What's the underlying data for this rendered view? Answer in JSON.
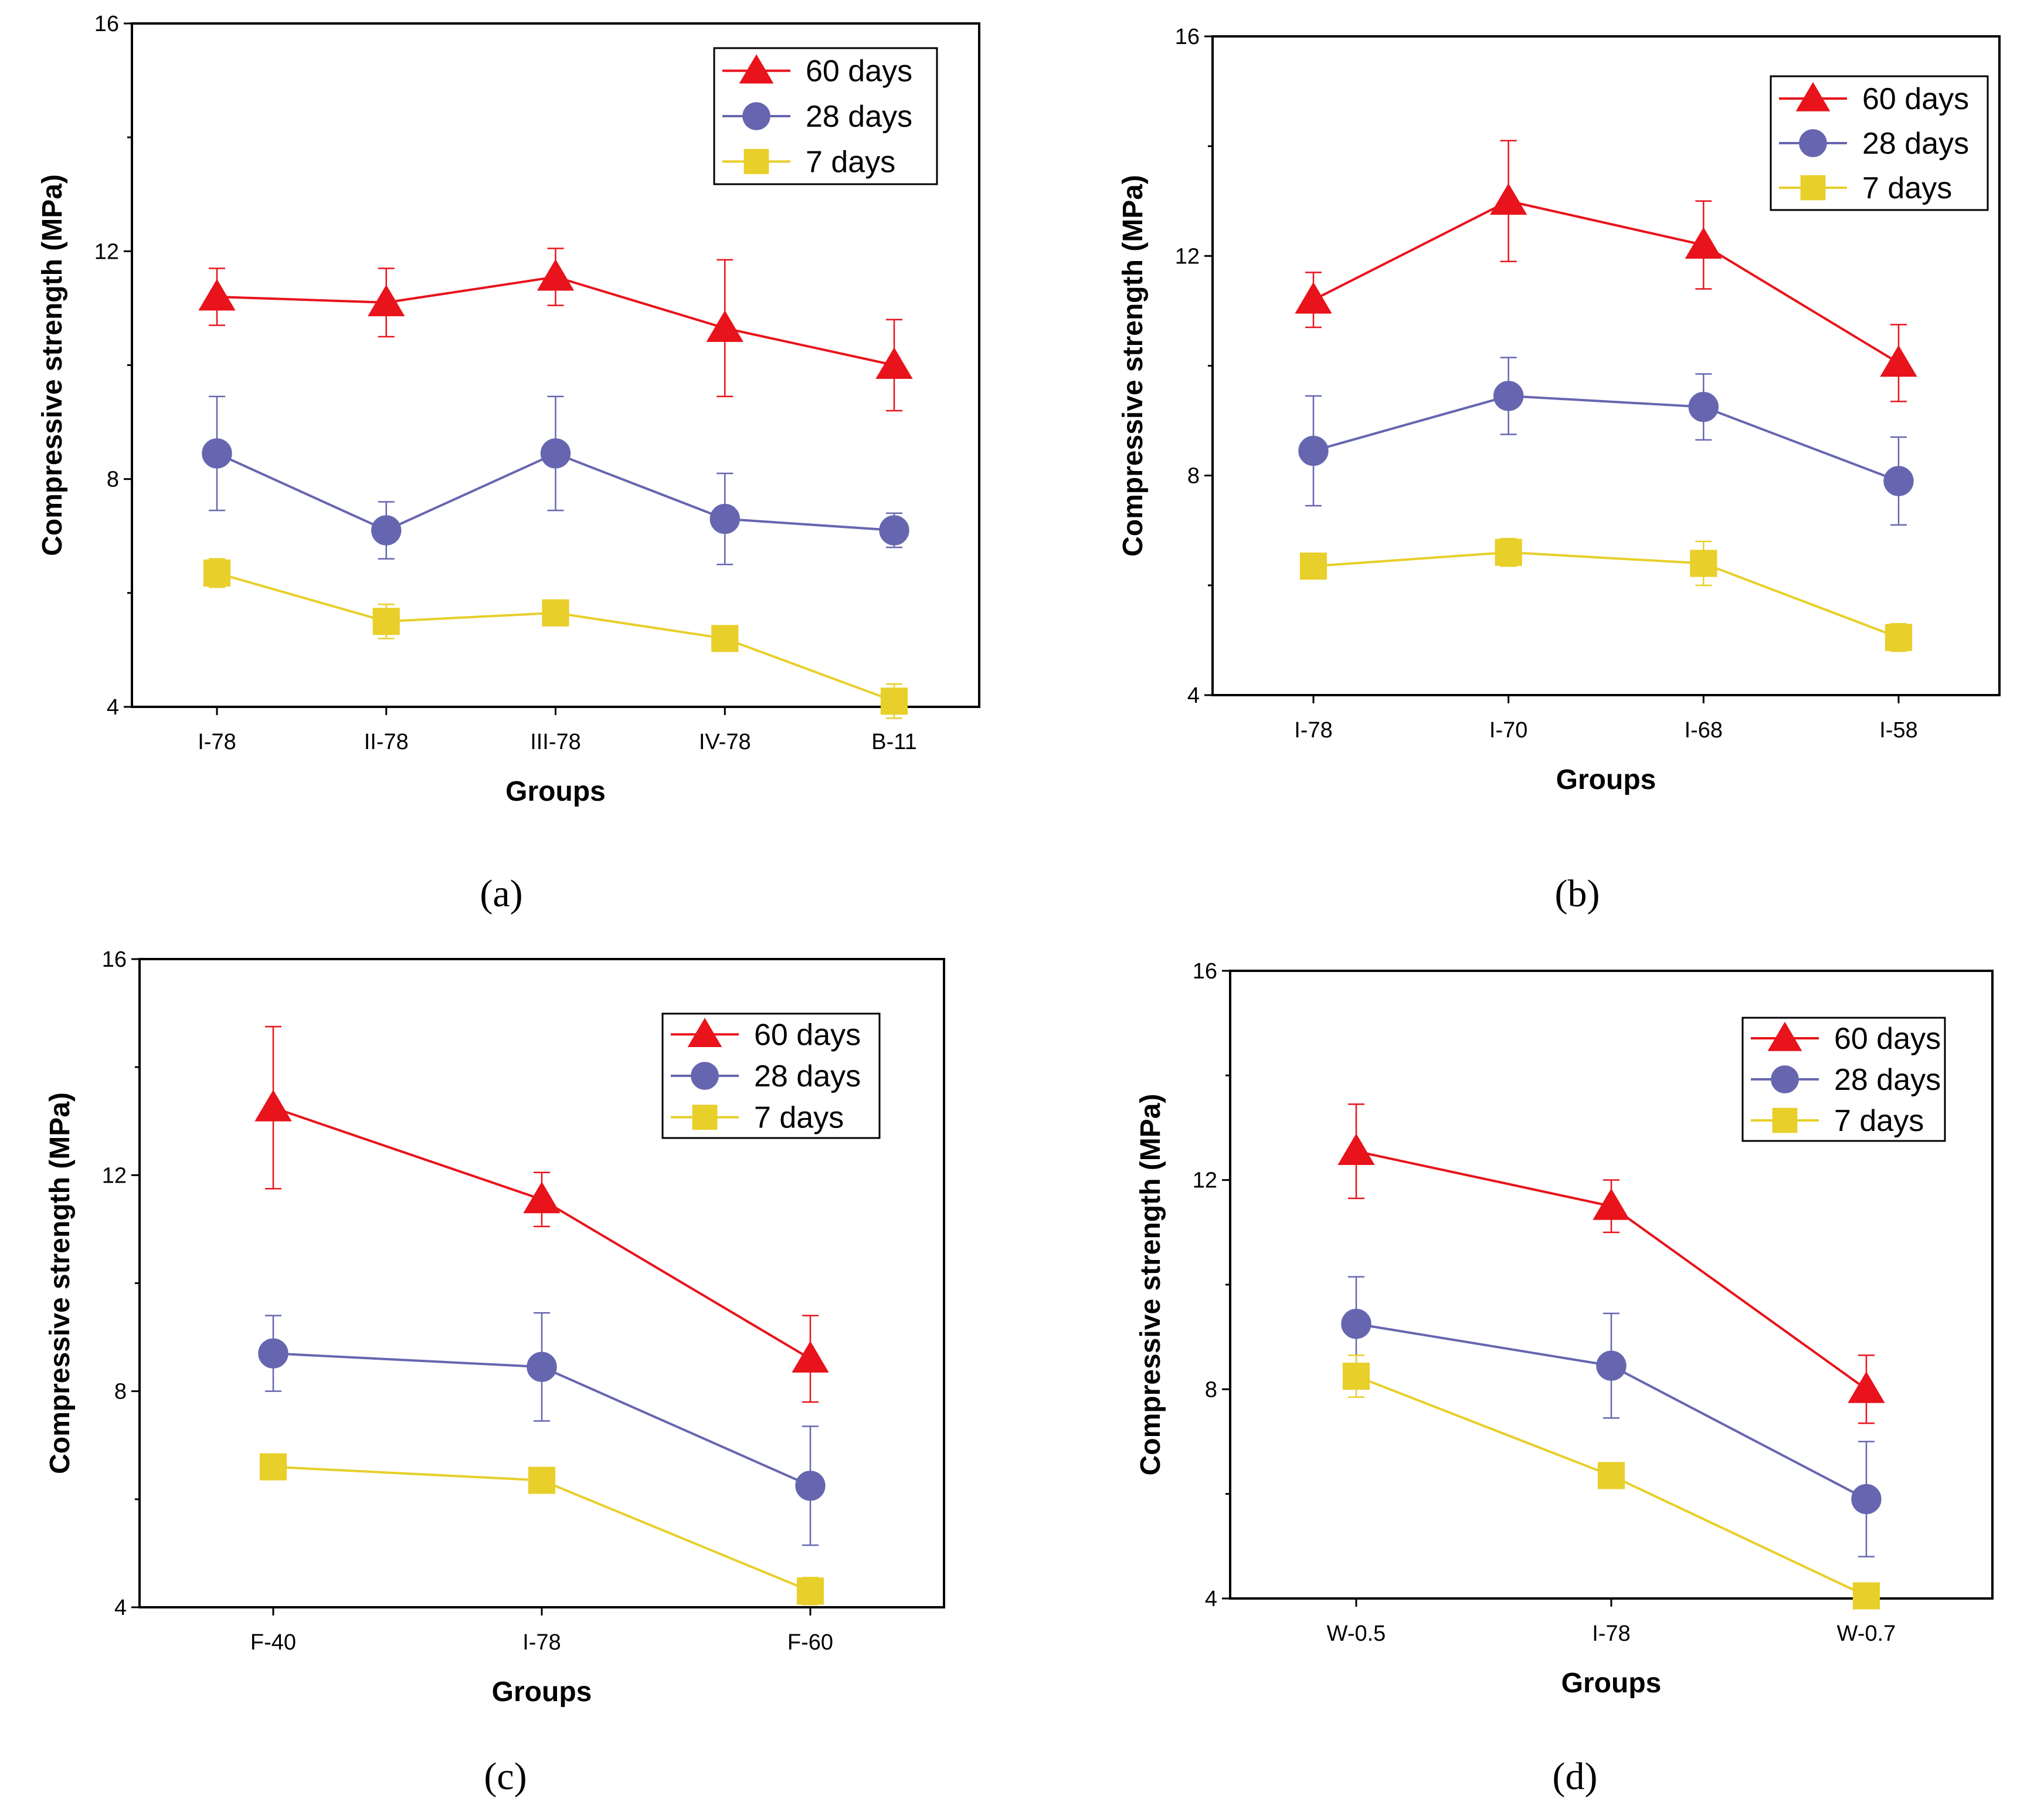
{
  "colors": {
    "60 days": "#e8131b",
    "28 days": "#6666b0",
    "7 days": "#e8cf2a"
  },
  "chart_data": [
    {
      "type": "line",
      "caption": "(a)",
      "xlabel": "Groups",
      "ylabel": "Compressive strength (MPa)",
      "ylim": [
        4,
        16
      ],
      "yticks": [
        "4",
        "8",
        "12",
        "16"
      ],
      "categories": [
        "I-78",
        "II-78",
        "III-78",
        "IV-78",
        "B-11"
      ],
      "legend_position": "top-right",
      "series": [
        {
          "name": "60 days",
          "marker": "triangle",
          "values": [
            11.2,
            11.1,
            11.55,
            10.65,
            10.0
          ],
          "err": [
            0.5,
            0.6,
            0.5,
            1.2,
            0.8
          ]
        },
        {
          "name": "28 days",
          "marker": "circle",
          "values": [
            8.45,
            7.1,
            8.45,
            7.3,
            7.1
          ],
          "err": [
            1.0,
            0.5,
            1.0,
            0.8,
            0.3
          ]
        },
        {
          "name": "7 days",
          "marker": "square",
          "values": [
            6.35,
            5.5,
            5.65,
            5.2,
            4.1
          ],
          "err": [
            0.25,
            0.3,
            0.2,
            0.2,
            0.3
          ]
        }
      ]
    },
    {
      "type": "line",
      "caption": "(b)",
      "xlabel": "Groups",
      "ylabel": "Compressive strength (MPa)",
      "ylim": [
        4,
        16
      ],
      "yticks": [
        "4",
        "8",
        "12",
        "16"
      ],
      "categories": [
        "I-78",
        "I-70",
        "I-68",
        "I-58"
      ],
      "legend_position": "top-right",
      "series": [
        {
          "name": "60 days",
          "marker": "triangle",
          "values": [
            11.2,
            13.0,
            12.2,
            10.05
          ],
          "err": [
            0.5,
            1.1,
            0.8,
            0.7
          ]
        },
        {
          "name": "28 days",
          "marker": "circle",
          "values": [
            8.45,
            9.45,
            9.25,
            7.9
          ],
          "err": [
            1.0,
            0.7,
            0.6,
            0.8
          ]
        },
        {
          "name": "7 days",
          "marker": "square",
          "values": [
            6.35,
            6.6,
            6.4,
            5.05
          ],
          "err": [
            0.2,
            0.25,
            0.4,
            0.25
          ]
        }
      ]
    },
    {
      "type": "line",
      "caption": "(c)",
      "xlabel": "Groups",
      "ylabel": "Compressive strength (MPa)",
      "ylim": [
        4,
        16
      ],
      "yticks": [
        "4",
        "8",
        "12",
        "16"
      ],
      "categories": [
        "F-40",
        "I-78",
        "F-60"
      ],
      "legend_position": "top-right",
      "series": [
        {
          "name": "60 days",
          "marker": "triangle",
          "values": [
            13.25,
            11.55,
            8.6
          ],
          "err": [
            1.5,
            0.5,
            0.8
          ]
        },
        {
          "name": "28 days",
          "marker": "circle",
          "values": [
            8.7,
            8.45,
            6.25
          ],
          "err": [
            0.7,
            1.0,
            1.1
          ]
        },
        {
          "name": "7 days",
          "marker": "square",
          "values": [
            6.6,
            6.35,
            4.3
          ],
          "err": [
            0.1,
            0.2,
            0.25
          ]
        }
      ]
    },
    {
      "type": "line",
      "caption": "(d)",
      "xlabel": "Groups",
      "ylabel": "Compressive strength (MPa)",
      "ylim": [
        4,
        16
      ],
      "yticks": [
        "4",
        "8",
        "12",
        "16"
      ],
      "categories": [
        "W-0.5",
        "I-78",
        "W-0.7"
      ],
      "legend_position": "top-right",
      "series": [
        {
          "name": "60 days",
          "marker": "triangle",
          "values": [
            12.55,
            11.5,
            8.0
          ],
          "err": [
            0.9,
            0.5,
            0.65
          ]
        },
        {
          "name": "28 days",
          "marker": "circle",
          "values": [
            9.25,
            8.45,
            5.9
          ],
          "err": [
            0.9,
            1.0,
            1.1
          ]
        },
        {
          "name": "7 days",
          "marker": "square",
          "values": [
            8.25,
            6.35,
            4.05
          ],
          "err": [
            0.4,
            0.2,
            0.2
          ]
        }
      ]
    }
  ]
}
